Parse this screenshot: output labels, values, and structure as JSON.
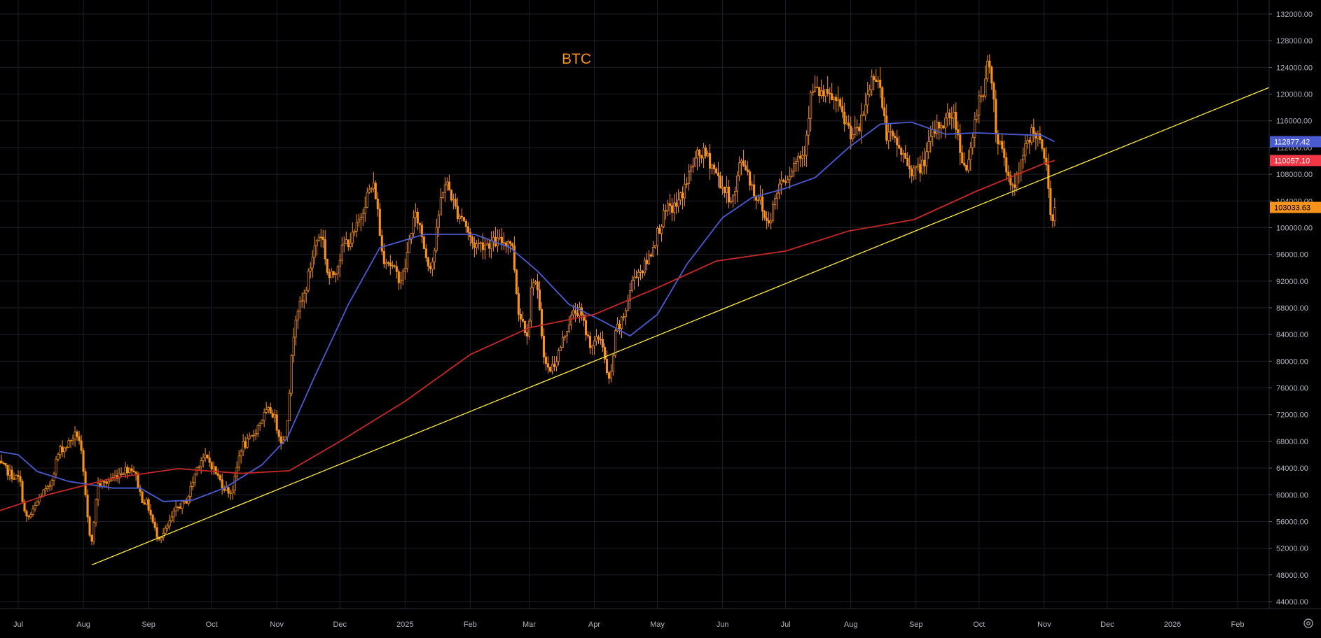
{
  "chart_data": {
    "type": "candlestick",
    "title": "BTC",
    "x_tick_labels": [
      "Jul",
      "Aug",
      "Sep",
      "Oct",
      "Nov",
      "Dec",
      "2025",
      "Feb",
      "Mar",
      "Apr",
      "May",
      "Jun",
      "Jul",
      "Aug",
      "Sep",
      "Oct",
      "Nov",
      "Dec",
      "2026",
      "Feb"
    ],
    "y_tick_labels": [
      "44000.00",
      "48000.00",
      "52000.00",
      "56000.00",
      "60000.00",
      "64000.00",
      "68000.00",
      "72000.00",
      "76000.00",
      "80000.00",
      "84000.00",
      "88000.00",
      "92000.00",
      "96000.00",
      "100000.00",
      "104000.00",
      "108000.00",
      "112000.00",
      "116000.00",
      "120000.00",
      "124000.00",
      "128000.00",
      "132000.00"
    ],
    "ylim": [
      42000,
      134000
    ],
    "grid": true,
    "price_keypoints": [
      [
        "2024-06-21",
        64500
      ],
      [
        "2024-07-01",
        62500
      ],
      [
        "2024-07-05",
        56500
      ],
      [
        "2024-07-14",
        60500
      ],
      [
        "2024-07-22",
        67000
      ],
      [
        "2024-07-29",
        69000
      ],
      [
        "2024-08-05",
        53500
      ],
      [
        "2024-08-08",
        61500
      ],
      [
        "2024-08-24",
        64000
      ],
      [
        "2024-08-30",
        59000
      ],
      [
        "2024-09-06",
        53800
      ],
      [
        "2024-09-17",
        58500
      ],
      [
        "2024-09-27",
        65500
      ],
      [
        "2024-10-10",
        60500
      ],
      [
        "2024-10-16",
        67500
      ],
      [
        "2024-10-29",
        72500
      ],
      [
        "2024-11-04",
        68000
      ],
      [
        "2024-11-11",
        88000
      ],
      [
        "2024-11-22",
        99000
      ],
      [
        "2024-11-26",
        92500
      ],
      [
        "2024-12-05",
        98000
      ],
      [
        "2024-12-17",
        106000
      ],
      [
        "2024-12-22",
        95500
      ],
      [
        "2024-12-30",
        92500
      ],
      [
        "2025-01-06",
        101500
      ],
      [
        "2025-01-13",
        94500
      ],
      [
        "2025-01-20",
        106500
      ],
      [
        "2025-01-27",
        102000
      ],
      [
        "2025-02-03",
        97500
      ],
      [
        "2025-02-20",
        98000
      ],
      [
        "2025-02-25",
        86500
      ],
      [
        "2025-02-28",
        84500
      ],
      [
        "2025-03-03",
        92500
      ],
      [
        "2025-03-10",
        78800
      ],
      [
        "2025-03-24",
        87500
      ],
      [
        "2025-03-31",
        82500
      ],
      [
        "2025-04-04",
        83500
      ],
      [
        "2025-04-08",
        77000
      ],
      [
        "2025-04-12",
        85000
      ],
      [
        "2025-04-22",
        93500
      ],
      [
        "2025-05-08",
        103000
      ],
      [
        "2025-05-22",
        111000
      ],
      [
        "2025-06-06",
        104500
      ],
      [
        "2025-06-10",
        110000
      ],
      [
        "2025-06-18",
        104500
      ],
      [
        "2025-06-22",
        101000
      ],
      [
        "2025-06-30",
        107500
      ],
      [
        "2025-07-09",
        111000
      ],
      [
        "2025-07-14",
        120500
      ],
      [
        "2025-07-22",
        119500
      ],
      [
        "2025-08-03",
        114000
      ],
      [
        "2025-08-13",
        123000
      ],
      [
        "2025-08-19",
        113500
      ],
      [
        "2025-09-01",
        108500
      ],
      [
        "2025-09-13",
        115500
      ],
      [
        "2025-09-18",
        117000
      ],
      [
        "2025-09-25",
        109000
      ],
      [
        "2025-10-02",
        120000
      ],
      [
        "2025-10-06",
        124500
      ],
      [
        "2025-10-10",
        113000
      ],
      [
        "2025-10-17",
        106500
      ],
      [
        "2025-10-27",
        114500
      ],
      [
        "2025-11-02",
        110000
      ],
      [
        "2025-11-04",
        101000
      ],
      [
        "2025-11-06",
        103033
      ]
    ],
    "series": [
      {
        "name": "",
        "color": "#4a5ad0",
        "points": [
          [
            "2024-06-21",
            66500
          ],
          [
            "2024-07-01",
            66000
          ],
          [
            "2024-07-10",
            63500
          ],
          [
            "2024-07-25",
            62000
          ],
          [
            "2024-08-15",
            61000
          ],
          [
            "2024-08-28",
            61000
          ],
          [
            "2024-09-08",
            59000
          ],
          [
            "2024-09-22",
            59200
          ],
          [
            "2024-10-07",
            61000
          ],
          [
            "2024-10-25",
            64500
          ],
          [
            "2024-11-06",
            68500
          ],
          [
            "2024-11-18",
            77000
          ],
          [
            "2024-12-05",
            88500
          ],
          [
            "2024-12-20",
            97000
          ],
          [
            "2025-01-10",
            99000
          ],
          [
            "2025-02-03",
            99000
          ],
          [
            "2025-02-20",
            97000
          ],
          [
            "2025-03-05",
            93500
          ],
          [
            "2025-03-20",
            88500
          ],
          [
            "2025-04-05",
            86000
          ],
          [
            "2025-04-18",
            83800
          ],
          [
            "2025-05-01",
            87000
          ],
          [
            "2025-05-15",
            94500
          ],
          [
            "2025-06-01",
            101500
          ],
          [
            "2025-06-15",
            104500
          ],
          [
            "2025-06-30",
            105800
          ],
          [
            "2025-07-15",
            107500
          ],
          [
            "2025-07-31",
            112000
          ],
          [
            "2025-08-15",
            115500
          ],
          [
            "2025-08-30",
            115800
          ],
          [
            "2025-09-15",
            114000
          ],
          [
            "2025-09-30",
            114200
          ],
          [
            "2025-10-15",
            114000
          ],
          [
            "2025-10-31",
            113800
          ],
          [
            "2025-11-06",
            112877.42
          ]
        ]
      },
      {
        "name": "",
        "color": "#c62828",
        "points": [
          [
            "2024-06-21",
            57500
          ],
          [
            "2024-07-15",
            60000
          ],
          [
            "2024-08-15",
            62500
          ],
          [
            "2024-09-15",
            63900
          ],
          [
            "2024-10-15",
            63200
          ],
          [
            "2024-11-07",
            63600
          ],
          [
            "2024-12-01",
            68000
          ],
          [
            "2025-01-01",
            74000
          ],
          [
            "2025-02-01",
            81000
          ],
          [
            "2025-03-01",
            85000
          ],
          [
            "2025-04-01",
            87000
          ],
          [
            "2025-05-01",
            91000
          ],
          [
            "2025-05-29",
            95000
          ],
          [
            "2025-07-01",
            96500
          ],
          [
            "2025-07-31",
            99500
          ],
          [
            "2025-08-31",
            101200
          ],
          [
            "2025-09-30",
            105500
          ],
          [
            "2025-10-31",
            109500
          ],
          [
            "2025-11-06",
            110057.1
          ]
        ]
      },
      {
        "name": "",
        "color": "#ffeb3b",
        "kind": "trendline",
        "points": [
          [
            "2024-08-05",
            49500
          ],
          [
            "2026-02-20",
            121500
          ]
        ]
      }
    ],
    "last_price_labels": [
      {
        "value": "112877.42",
        "color": "#4a5ad0"
      },
      {
        "value": "110057.10",
        "color": "#f23645"
      },
      {
        "value": "103033.63",
        "color": "#f7931a"
      }
    ]
  },
  "icons": {
    "settings": "settings-icon"
  }
}
